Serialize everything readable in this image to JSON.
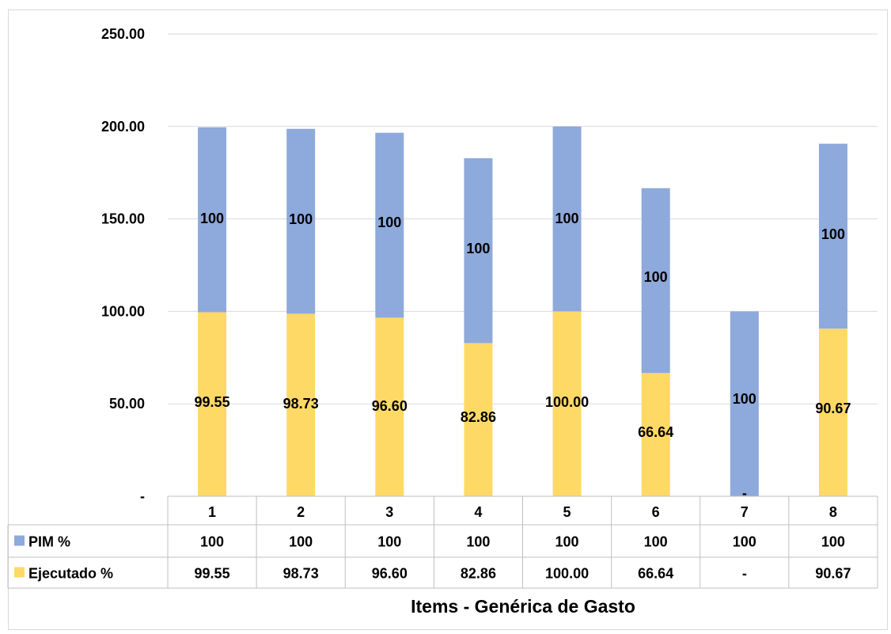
{
  "chart_data": {
    "type": "bar",
    "stacked": true,
    "categories": [
      "1",
      "2",
      "3",
      "4",
      "5",
      "6",
      "7",
      "8"
    ],
    "series": [
      {
        "name": "Ejecutado %",
        "color": "#FFD966",
        "values": [
          99.55,
          98.73,
          96.6,
          82.86,
          100.0,
          66.64,
          0,
          90.67
        ],
        "labels": [
          "99.55",
          "98.73",
          "96.60",
          "82.86",
          "100.00",
          "66.64",
          "-",
          "90.67"
        ]
      },
      {
        "name": "PIM %",
        "color": "#8EA9DB",
        "values": [
          100,
          100,
          100,
          100,
          100,
          100,
          100,
          100
        ],
        "labels": [
          "100",
          "100",
          "100",
          "100",
          "100",
          "100",
          "100",
          "100"
        ]
      }
    ],
    "yticks": [
      {
        "value": 0,
        "label": "-"
      },
      {
        "value": 50,
        "label": "50.00"
      },
      {
        "value": 100,
        "label": "100.00"
      },
      {
        "value": 150,
        "label": "150.00"
      },
      {
        "value": 200,
        "label": "200.00"
      },
      {
        "value": 250,
        "label": "250.00"
      }
    ],
    "ylim": [
      0,
      250
    ],
    "xlabel": "Items - Genérica de Gasto",
    "data_table": true,
    "table_rows_order": [
      "PIM %",
      "Ejecutado %"
    ],
    "grid": true,
    "gridline_color": "#d9d9d9"
  }
}
